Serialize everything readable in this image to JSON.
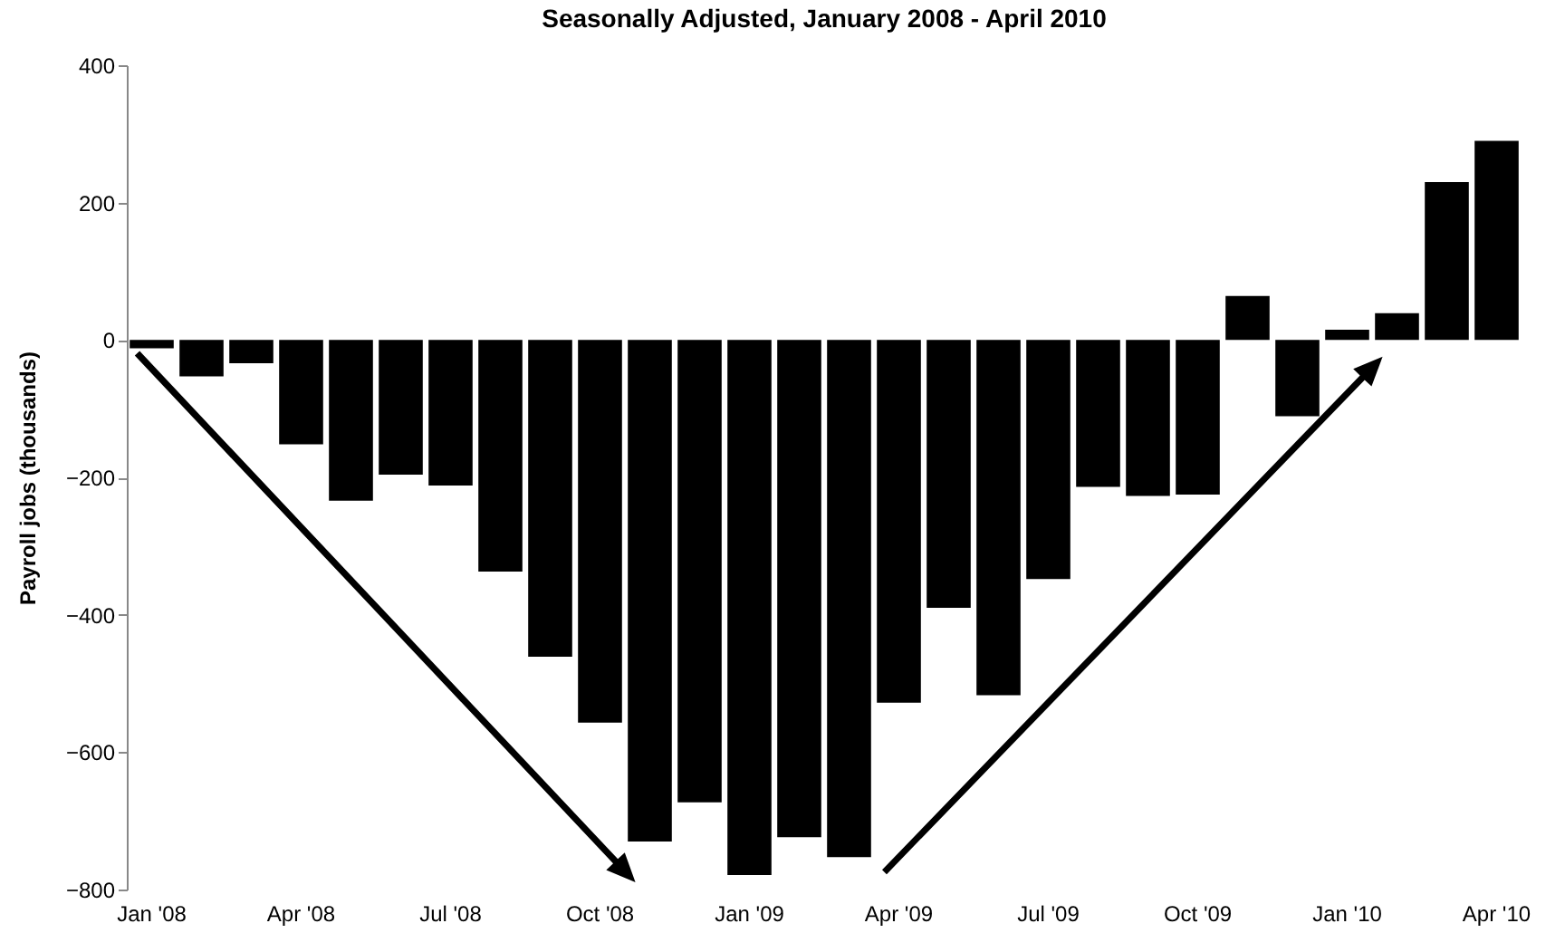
{
  "chart_data": {
    "type": "bar",
    "title": "Seasonally Adjusted, January 2008 - April 2010",
    "ylabel": "Payroll jobs (thousands)",
    "categories": [
      "Jan '08",
      null,
      null,
      "Apr '08",
      null,
      null,
      "Jul '08",
      null,
      null,
      "Oct '08",
      null,
      null,
      "Jan '09",
      null,
      null,
      "Apr '09",
      null,
      null,
      "Jul '09",
      null,
      null,
      "Oct '09",
      null,
      null,
      "Jan '10",
      null,
      null,
      "Apr '10"
    ],
    "values": [
      -12,
      -53,
      -34,
      -152,
      -234,
      -196,
      -212,
      -337,
      -461,
      -557,
      -730,
      -673,
      -779,
      -724,
      -753,
      -528,
      -390,
      -517,
      -348,
      -214,
      -227,
      -225,
      64,
      -111,
      15,
      39,
      230,
      290
    ],
    "color": "#000000",
    "ylim": [
      -800,
      400
    ],
    "yticks": [
      -800,
      -600,
      -400,
      -200,
      0,
      200,
      400
    ],
    "grid": false
  }
}
